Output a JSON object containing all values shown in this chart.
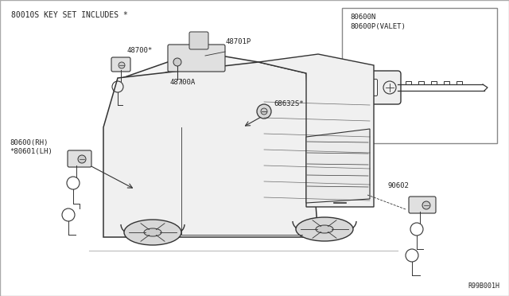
{
  "bg_color": "#f0f0f0",
  "line_color": "#333333",
  "text_color": "#222222",
  "labels": {
    "top_left": "80010S KEY SET INCLUDES *",
    "part_48700": "48700*",
    "part_48701P": "48701P",
    "part_48700A": "48700A",
    "part_68632S": "68632S*",
    "part_80600": "80600(RH)",
    "part_80601": "*80601(LH)",
    "part_90602": "90602",
    "inset_80600N": "80600N",
    "inset_80600P": "80600P(VALET)",
    "bottom_right": "R99B001H"
  }
}
